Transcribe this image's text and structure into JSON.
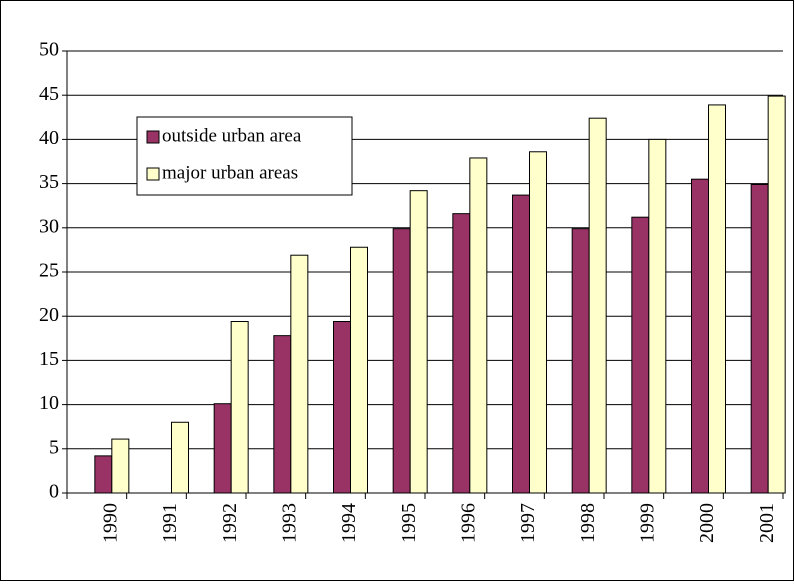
{
  "chart_data": {
    "type": "bar",
    "categories": [
      "1990",
      "1991",
      "1992",
      "1993",
      "1994",
      "1995",
      "1996",
      "1997",
      "1998",
      "1999",
      "2000",
      "2001"
    ],
    "series": [
      {
        "name": "outside urban area",
        "color": "#993366",
        "values": [
          4.2,
          null,
          10.1,
          17.8,
          19.4,
          29.9,
          31.6,
          33.7,
          29.9,
          31.2,
          35.5,
          34.9
        ]
      },
      {
        "name": "major urban areas",
        "color": "#ffffcc",
        "values": [
          6.1,
          8.0,
          19.4,
          26.9,
          27.8,
          34.2,
          37.9,
          38.6,
          42.4,
          40.0,
          43.9,
          44.9
        ]
      }
    ],
    "ylim": [
      0,
      50
    ],
    "yticks": [
      0,
      5,
      10,
      15,
      20,
      25,
      30,
      35,
      40,
      45,
      50
    ],
    "grid": true,
    "legend": "upper left"
  }
}
